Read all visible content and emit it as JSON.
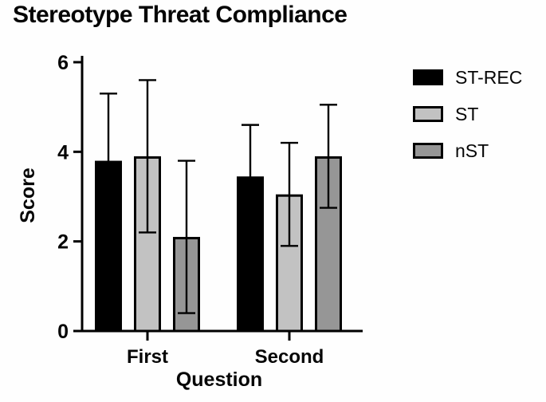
{
  "chart_data": {
    "type": "bar",
    "title": "Stereotype Threat Compliance",
    "xlabel": "Question",
    "ylabel": "Score",
    "categories": [
      "First",
      "Second"
    ],
    "series": [
      {
        "name": "ST-REC",
        "color": "#000000",
        "values": [
          3.8,
          3.45
        ],
        "errors": [
          1.5,
          1.15
        ]
      },
      {
        "name": "ST",
        "color": "#c2c2c2",
        "values": [
          3.9,
          3.05
        ],
        "errors": [
          1.7,
          1.15
        ]
      },
      {
        "name": "nST",
        "color": "#969696",
        "values": [
          2.1,
          3.9
        ],
        "errors": [
          1.7,
          1.15
        ]
      }
    ],
    "ylim": [
      0,
      6
    ],
    "yticks": [
      0,
      2,
      4,
      6
    ],
    "grid": false,
    "legend_position": "right",
    "error_bar_style": "sd-both-caps-drawn-over-bars",
    "axis_color": "#000000"
  }
}
